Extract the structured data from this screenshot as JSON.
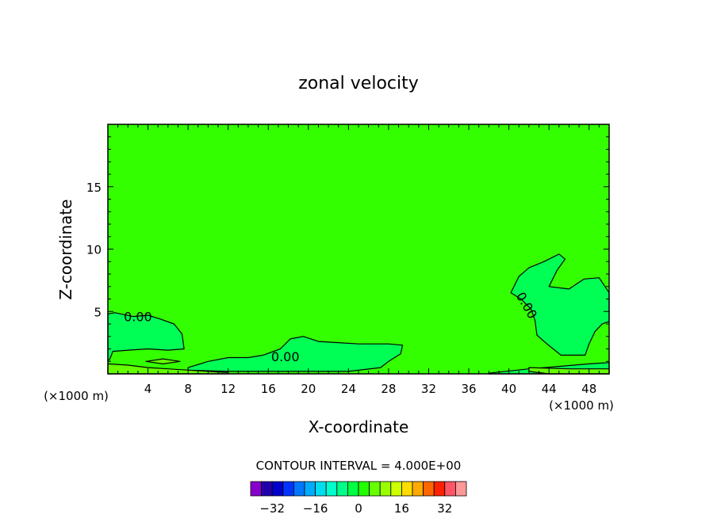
{
  "chart_data": {
    "type": "heatmap",
    "title": "zonal velocity",
    "xlabel": "X-coordinate",
    "ylabel": "Z-coordinate",
    "x_unit": "(×1000 m)",
    "xlim": [
      0,
      50
    ],
    "ylim": [
      0,
      20
    ],
    "x_ticks": [
      4,
      8,
      12,
      16,
      20,
      24,
      28,
      32,
      36,
      40,
      44,
      48
    ],
    "y_ticks": [
      5,
      10,
      15
    ],
    "contour_interval_text": "CONTOUR INTERVAL = 4.000E+00",
    "contour_interval": 4.0,
    "contour_labels": [
      {
        "text": "0.00",
        "x": 3.0,
        "z": 4.6
      },
      {
        "text": "0.00",
        "x": 17.7,
        "z": 1.4
      },
      {
        "text": "0.00",
        "x": 41.8,
        "z": 5.5
      }
    ],
    "colorbar": {
      "levels": [
        -36,
        -32,
        -28,
        -24,
        -20,
        -16,
        -12,
        -8,
        -4,
        0,
        4,
        8,
        12,
        16,
        20,
        24,
        28,
        32,
        36
      ],
      "tick_values": [
        -32,
        -16,
        0,
        16,
        32
      ],
      "tick_labels": [
        "−32",
        "−16",
        "0",
        "16",
        "32"
      ],
      "colors": [
        "#8800cc",
        "#2200aa",
        "#0000cc",
        "#0033ff",
        "#0077ff",
        "#00aaff",
        "#00ddee",
        "#00ffcc",
        "#00ff88",
        "#00ff44",
        "#22ff00",
        "#66ff00",
        "#99ff00",
        "#ccff00",
        "#ffdd00",
        "#ffaa00",
        "#ff6600",
        "#ff2200",
        "#ff5566",
        "#ff9999"
      ]
    },
    "background_color": "#33ff00",
    "regions": [
      {
        "value_range": [
          4,
          8
        ],
        "color": "#00ff55",
        "outline": [
          [
            0,
            4.8
          ],
          [
            0.7,
            4.9
          ],
          [
            2.5,
            4.6
          ],
          [
            4.0,
            4.7
          ],
          [
            5.2,
            4.4
          ],
          [
            6.6,
            4.0
          ],
          [
            7.4,
            3.2
          ],
          [
            7.6,
            2.0
          ],
          [
            6.0,
            1.9
          ],
          [
            4.0,
            2.0
          ],
          [
            2.0,
            1.9
          ],
          [
            0.5,
            1.8
          ],
          [
            0.2,
            1.2
          ],
          [
            0,
            1.0
          ]
        ]
      },
      {
        "value_range": [
          4,
          8
        ],
        "color": "#00ff55",
        "outline": [
          [
            8,
            0.5
          ],
          [
            10,
            1.0
          ],
          [
            12,
            1.3
          ],
          [
            14,
            1.3
          ],
          [
            15.5,
            1.5
          ],
          [
            17.2,
            2.0
          ],
          [
            18.2,
            2.8
          ],
          [
            19.5,
            3.0
          ],
          [
            21,
            2.6
          ],
          [
            23,
            2.5
          ],
          [
            25,
            2.4
          ],
          [
            28,
            2.4
          ],
          [
            29.4,
            2.3
          ],
          [
            29.2,
            1.6
          ],
          [
            28.0,
            1.0
          ],
          [
            27.2,
            0.5
          ],
          [
            24,
            0.2
          ],
          [
            18,
            0.2
          ],
          [
            12,
            0.2
          ],
          [
            8,
            0.3
          ]
        ]
      },
      {
        "value_range": [
          4,
          8
        ],
        "color": "#00ff55",
        "outline": [
          [
            40.2,
            6.5
          ],
          [
            41.0,
            7.8
          ],
          [
            42.0,
            8.5
          ],
          [
            43.5,
            9.0
          ],
          [
            45.0,
            9.6
          ],
          [
            45.6,
            9.2
          ],
          [
            44.8,
            8.3
          ],
          [
            44.0,
            7.0
          ],
          [
            46.0,
            6.8
          ],
          [
            47.5,
            7.6
          ],
          [
            49.0,
            7.7
          ],
          [
            50,
            6.5
          ],
          [
            50,
            4.2
          ],
          [
            49.3,
            4.0
          ],
          [
            48.6,
            3.4
          ],
          [
            48.0,
            2.4
          ],
          [
            47.6,
            1.5
          ],
          [
            45.2,
            1.5
          ],
          [
            43.8,
            2.4
          ],
          [
            42.8,
            3.1
          ],
          [
            42.6,
            4.3
          ],
          [
            42.2,
            5.2
          ],
          [
            41.2,
            6.0
          ]
        ]
      },
      {
        "value_range": [
          4,
          8
        ],
        "color": "#00ff55",
        "outline": [
          [
            38,
            0.05
          ],
          [
            42,
            0.4
          ],
          [
            45,
            0.6
          ],
          [
            48,
            0.8
          ],
          [
            50,
            0.9
          ],
          [
            50,
            0.0
          ],
          [
            38,
            0.0
          ]
        ]
      },
      {
        "value_range": [
          8,
          12
        ],
        "color": "#66ff00",
        "outline": [
          [
            0,
            0.8
          ],
          [
            2,
            0.7
          ],
          [
            4,
            0.5
          ],
          [
            6,
            0.4
          ],
          [
            8,
            0.3
          ],
          [
            10,
            0.2
          ],
          [
            12,
            0.1
          ],
          [
            12,
            0
          ],
          [
            0,
            0
          ]
        ]
      },
      {
        "value_range": [
          8,
          12
        ],
        "color": "#66ff00",
        "outline": [
          [
            3.8,
            1.0
          ],
          [
            5.5,
            1.2
          ],
          [
            7.2,
            1.0
          ],
          [
            5.5,
            0.8
          ]
        ]
      },
      {
        "value_range": [
          8,
          12
        ],
        "color": "#66ff00",
        "outline": [
          [
            42,
            0.5
          ],
          [
            46,
            0.4
          ],
          [
            50,
            0.4
          ],
          [
            50,
            0
          ],
          [
            44,
            0
          ],
          [
            42,
            0.2
          ]
        ]
      }
    ]
  }
}
